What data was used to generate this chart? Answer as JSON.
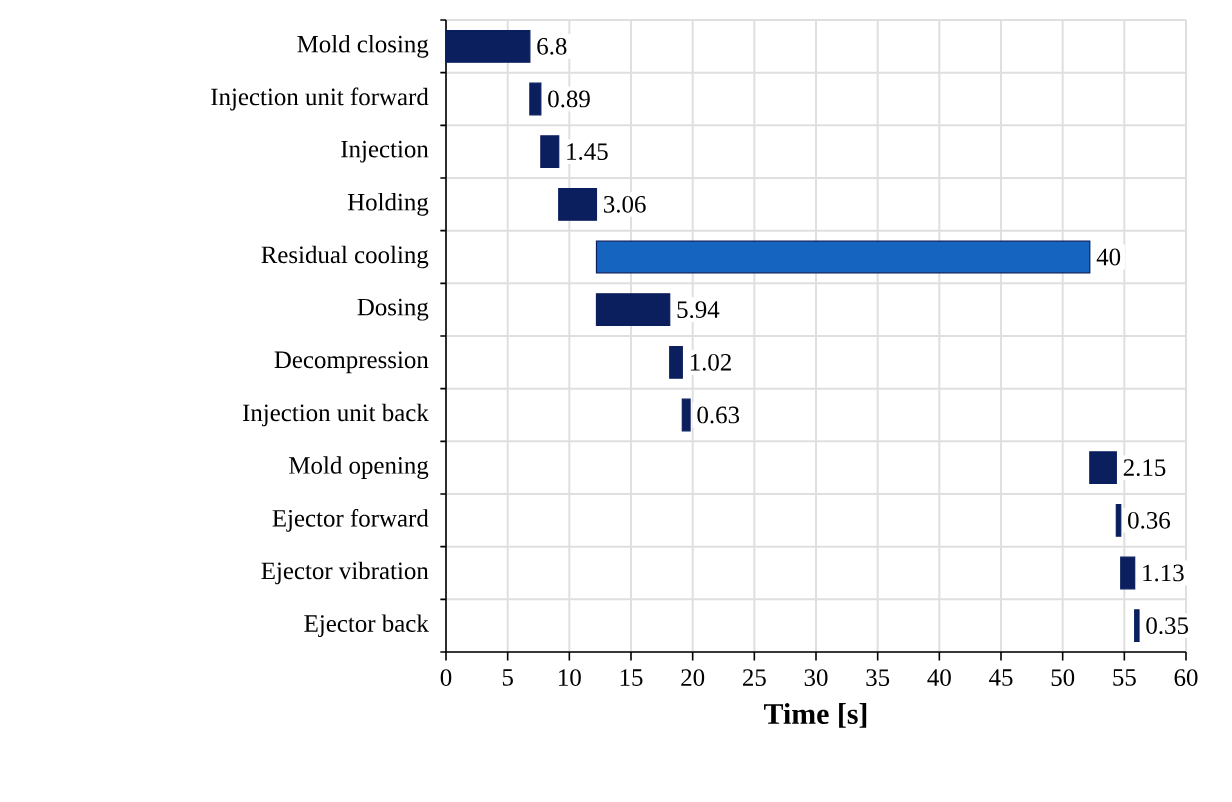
{
  "chart_data": {
    "type": "bar",
    "orientation": "horizontal",
    "xlabel": "Time [s]",
    "categories": [
      "Mold closing",
      "Injection unit forward",
      "Injection",
      "Holding",
      "Residual cooling",
      "Dosing",
      "Decompression",
      "Injection unit back",
      "Mold opening",
      "Ejector forward",
      "Ejector vibration",
      "Ejector back"
    ],
    "base": [
      0,
      6.8,
      7.69,
      9.14,
      12.2,
      12.2,
      18.14,
      19.16,
      52.2,
      54.35,
      54.71,
      55.84
    ],
    "values": [
      6.8,
      0.89,
      1.45,
      3.06,
      40,
      5.94,
      1.02,
      0.63,
      2.15,
      0.36,
      1.13,
      0.35
    ],
    "colors": [
      "#0b1f5e",
      "#0b1f5e",
      "#0b1f5e",
      "#0b1f5e",
      "#1565c0",
      "#0b1f5e",
      "#0b1f5e",
      "#0b1f5e",
      "#0b1f5e",
      "#0b1f5e",
      "#0b1f5e",
      "#0b1f5e"
    ],
    "xlim": [
      0,
      60
    ],
    "xticks": [
      0,
      5,
      10,
      15,
      20,
      25,
      30,
      35,
      40,
      45,
      50,
      55,
      60
    ],
    "grid": true,
    "data_labels": true
  }
}
